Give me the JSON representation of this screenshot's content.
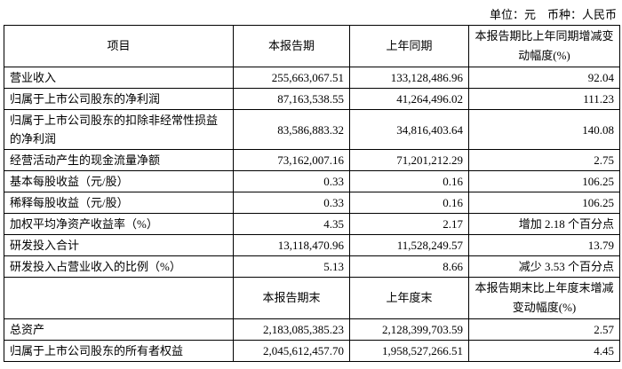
{
  "header": {
    "unit": "单位：元　币种：人民币"
  },
  "table": {
    "header": [
      "项目",
      "本报告期",
      "上年同期",
      "本报告期比上年同期增减变动幅度(%)"
    ],
    "rows": [
      [
        "营业收入",
        "255,663,067.51",
        "133,128,486.96",
        "92.04"
      ],
      [
        "归属于上市公司股东的净利润",
        "87,163,538.55",
        "41,264,496.02",
        "111.23"
      ],
      [
        "归属于上市公司股东的扣除非经常性损益的净利润",
        "83,586,883.32",
        "34,816,403.64",
        "140.08"
      ],
      [
        "经营活动产生的现金流量净额",
        "73,162,007.16",
        "71,201,212.29",
        "2.75"
      ],
      [
        "基本每股收益（元/股）",
        "0.33",
        "0.16",
        "106.25"
      ],
      [
        "稀释每股收益（元/股）",
        "0.33",
        "0.16",
        "106.25"
      ],
      [
        "加权平均净资产收益率（%）",
        "4.35",
        "2.17",
        "增加 2.18 个百分点"
      ],
      [
        "研发投入合计",
        "13,118,470.96",
        "11,528,249.57",
        "13.79"
      ],
      [
        "研发投入占营业收入的比例（%）",
        "5.13",
        "8.66",
        "减少 3.53 个百分点"
      ]
    ],
    "header2": [
      "本报告期末",
      "上年度末",
      "本报告期末比上年度末增减变动幅度(%)"
    ],
    "rows2": [
      [
        "总资产",
        "2,183,085,385.23",
        "2,128,399,703.59",
        "2.57"
      ],
      [
        "归属于上市公司股东的所有者权益",
        "2,045,612,457.70",
        "1,958,527,266.51",
        "4.45"
      ]
    ]
  }
}
